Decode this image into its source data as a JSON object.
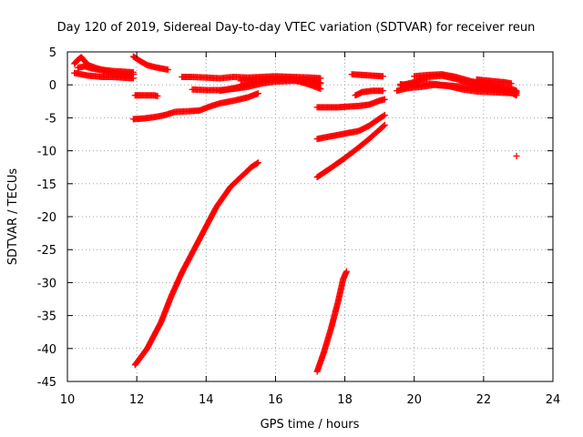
{
  "chart_data": {
    "type": "scatter",
    "title": "Day 120 of 2019, Sidereal Day-to-day VTEC variation (SDTVAR) for receiver reun",
    "xlabel": "GPS time / hours",
    "ylabel": "SDTVAR / TECUs",
    "xlim": [
      10,
      24
    ],
    "ylim": [
      -45,
      5
    ],
    "xticks": [
      "10",
      "12",
      "14",
      "16",
      "18",
      "20",
      "22",
      "24"
    ],
    "yticks": [
      "5",
      "0",
      "-5",
      "-10",
      "-15",
      "-20",
      "-25",
      "-30",
      "-35",
      "-40",
      "-45"
    ],
    "grid": true,
    "marker": "+",
    "color": "#ff0000",
    "series": [
      {
        "points": [
          [
            10.2,
            3.2
          ],
          [
            10.3,
            3.8
          ],
          [
            10.4,
            4.2
          ],
          [
            10.5,
            3.6
          ],
          [
            10.6,
            3.0
          ],
          [
            10.8,
            2.6
          ],
          [
            11.0,
            2.3
          ],
          [
            11.3,
            2.1
          ],
          [
            11.6,
            2.0
          ],
          [
            11.9,
            1.9
          ]
        ]
      },
      {
        "points": [
          [
            10.2,
            1.8
          ],
          [
            10.4,
            1.6
          ],
          [
            10.6,
            1.4
          ],
          [
            10.8,
            1.3
          ],
          [
            11.0,
            1.2
          ],
          [
            11.3,
            1.2
          ],
          [
            11.6,
            1.1
          ],
          [
            11.9,
            1.0
          ]
        ]
      },
      {
        "points": [
          [
            10.3,
            2.6
          ],
          [
            10.5,
            2.8
          ],
          [
            10.7,
            2.5
          ],
          [
            11.0,
            2.2
          ],
          [
            11.3,
            1.8
          ],
          [
            11.6,
            1.6
          ],
          [
            11.9,
            1.6
          ]
        ]
      },
      {
        "points": [
          [
            11.9,
            4.3
          ],
          [
            12.1,
            3.6
          ],
          [
            12.3,
            3.0
          ],
          [
            12.5,
            2.7
          ],
          [
            12.7,
            2.5
          ],
          [
            12.9,
            2.3
          ]
        ]
      },
      {
        "points": [
          [
            11.95,
            -1.6
          ],
          [
            12.1,
            -1.6
          ],
          [
            12.3,
            -1.6
          ],
          [
            12.5,
            -1.6
          ],
          [
            12.6,
            -1.7
          ]
        ]
      },
      {
        "points": [
          [
            11.9,
            -5.2
          ],
          [
            12.2,
            -5.1
          ],
          [
            12.5,
            -4.9
          ],
          [
            12.8,
            -4.6
          ],
          [
            13.1,
            -4.1
          ],
          [
            13.5,
            -4.0
          ],
          [
            13.8,
            -3.9
          ],
          [
            14.1,
            -3.3
          ],
          [
            14.4,
            -2.8
          ],
          [
            14.8,
            -2.4
          ],
          [
            15.2,
            -1.9
          ],
          [
            15.5,
            -1.3
          ]
        ]
      },
      {
        "points": [
          [
            13.3,
            1.2
          ],
          [
            13.6,
            1.2
          ],
          [
            14.0,
            1.1
          ],
          [
            14.4,
            1.0
          ],
          [
            14.8,
            1.2
          ],
          [
            15.2,
            1.1
          ],
          [
            15.6,
            1.2
          ],
          [
            16.0,
            1.3
          ],
          [
            16.5,
            1.2
          ],
          [
            17.0,
            1.1
          ],
          [
            17.3,
            1.0
          ]
        ]
      },
      {
        "points": [
          [
            13.6,
            -0.7
          ],
          [
            14.0,
            -0.8
          ],
          [
            14.4,
            -0.8
          ],
          [
            14.8,
            -0.6
          ],
          [
            15.2,
            -0.3
          ],
          [
            15.6,
            0.2
          ],
          [
            16.0,
            0.5
          ],
          [
            16.5,
            0.6
          ],
          [
            17.0,
            0.5
          ],
          [
            17.3,
            0.3
          ]
        ]
      },
      {
        "points": [
          [
            14.4,
            -0.9
          ],
          [
            14.8,
            -0.5
          ],
          [
            15.2,
            0.0
          ],
          [
            15.6,
            0.6
          ],
          [
            16.0,
            0.9
          ],
          [
            16.5,
            0.8
          ],
          [
            17.0,
            0.0
          ],
          [
            17.3,
            -0.6
          ]
        ]
      },
      {
        "points": [
          [
            15.0,
            0.6
          ],
          [
            15.5,
            0.9
          ],
          [
            16.0,
            1.0
          ],
          [
            16.5,
            0.9
          ],
          [
            17.0,
            0.6
          ],
          [
            17.3,
            0.2
          ]
        ]
      },
      {
        "points": [
          [
            11.95,
            -42.5
          ],
          [
            12.3,
            -40.0
          ],
          [
            12.7,
            -36.0
          ],
          [
            13.0,
            -32.0
          ],
          [
            13.3,
            -28.5
          ],
          [
            13.7,
            -24.5
          ],
          [
            14.0,
            -21.5
          ],
          [
            14.3,
            -18.5
          ],
          [
            14.7,
            -15.5
          ],
          [
            15.0,
            -14.0
          ],
          [
            15.3,
            -12.5
          ],
          [
            15.5,
            -11.8
          ]
        ]
      },
      {
        "points": [
          [
            17.2,
            -43.5
          ],
          [
            17.4,
            -40.5
          ],
          [
            17.6,
            -37.0
          ],
          [
            17.8,
            -33.0
          ],
          [
            17.95,
            -29.5
          ],
          [
            18.05,
            -28.3
          ]
        ]
      },
      {
        "points": [
          [
            17.2,
            -3.4
          ],
          [
            17.5,
            -3.4
          ],
          [
            17.8,
            -3.4
          ],
          [
            18.1,
            -3.3
          ],
          [
            18.4,
            -3.2
          ],
          [
            18.7,
            -3.0
          ],
          [
            19.0,
            -2.4
          ],
          [
            19.15,
            -2.2
          ]
        ]
      },
      {
        "points": [
          [
            17.2,
            -8.2
          ],
          [
            17.6,
            -7.8
          ],
          [
            18.0,
            -7.4
          ],
          [
            18.4,
            -7.0
          ],
          [
            18.7,
            -6.2
          ],
          [
            19.0,
            -5.1
          ],
          [
            19.15,
            -4.6
          ]
        ]
      },
      {
        "points": [
          [
            17.2,
            -14.0
          ],
          [
            17.6,
            -12.6
          ],
          [
            18.0,
            -11.1
          ],
          [
            18.4,
            -9.5
          ],
          [
            18.7,
            -8.2
          ],
          [
            19.0,
            -6.8
          ],
          [
            19.15,
            -6.1
          ]
        ]
      },
      {
        "points": [
          [
            18.2,
            1.6
          ],
          [
            18.5,
            1.5
          ],
          [
            18.8,
            1.4
          ],
          [
            19.1,
            1.3
          ]
        ]
      },
      {
        "points": [
          [
            18.3,
            -1.6
          ],
          [
            18.5,
            -1.1
          ],
          [
            18.8,
            -0.9
          ],
          [
            19.1,
            -0.9
          ]
        ]
      },
      {
        "points": [
          [
            19.6,
            -0.1
          ],
          [
            20.0,
            0.4
          ],
          [
            20.4,
            1.2
          ],
          [
            20.8,
            1.4
          ],
          [
            21.2,
            0.9
          ],
          [
            21.6,
            0.3
          ],
          [
            22.0,
            -0.2
          ],
          [
            22.4,
            -0.5
          ],
          [
            22.8,
            -0.9
          ],
          [
            22.95,
            -1.1
          ]
        ]
      },
      {
        "points": [
          [
            19.6,
            0.1
          ],
          [
            20.0,
            -0.1
          ],
          [
            20.4,
            0.2
          ],
          [
            20.8,
            0.0
          ],
          [
            21.2,
            -0.2
          ],
          [
            21.6,
            -0.3
          ],
          [
            22.0,
            -0.5
          ],
          [
            22.4,
            -0.8
          ],
          [
            22.8,
            -1.2
          ],
          [
            22.95,
            -1.6
          ]
        ]
      },
      {
        "points": [
          [
            20.0,
            1.3
          ],
          [
            20.4,
            1.5
          ],
          [
            20.8,
            1.6
          ],
          [
            21.2,
            1.2
          ],
          [
            21.6,
            0.6
          ],
          [
            22.0,
            0.1
          ],
          [
            22.4,
            -0.2
          ],
          [
            22.8,
            -0.6
          ],
          [
            22.95,
            -0.9
          ]
        ]
      },
      {
        "points": [
          [
            19.5,
            -0.9
          ],
          [
            19.8,
            -0.5
          ],
          [
            20.2,
            -0.3
          ],
          [
            20.6,
            0.0
          ],
          [
            21.0,
            -0.2
          ],
          [
            21.4,
            -0.7
          ],
          [
            21.8,
            -1.0
          ],
          [
            22.2,
            -1.1
          ],
          [
            22.6,
            -1.2
          ],
          [
            22.95,
            -1.3
          ]
        ]
      },
      {
        "points": [
          [
            21.8,
            0.8
          ],
          [
            22.0,
            0.7
          ],
          [
            22.2,
            0.6
          ],
          [
            22.4,
            0.5
          ],
          [
            22.6,
            0.4
          ],
          [
            22.8,
            0.2
          ]
        ]
      },
      {
        "points": [
          [
            22.95,
            -10.8
          ]
        ]
      }
    ]
  }
}
